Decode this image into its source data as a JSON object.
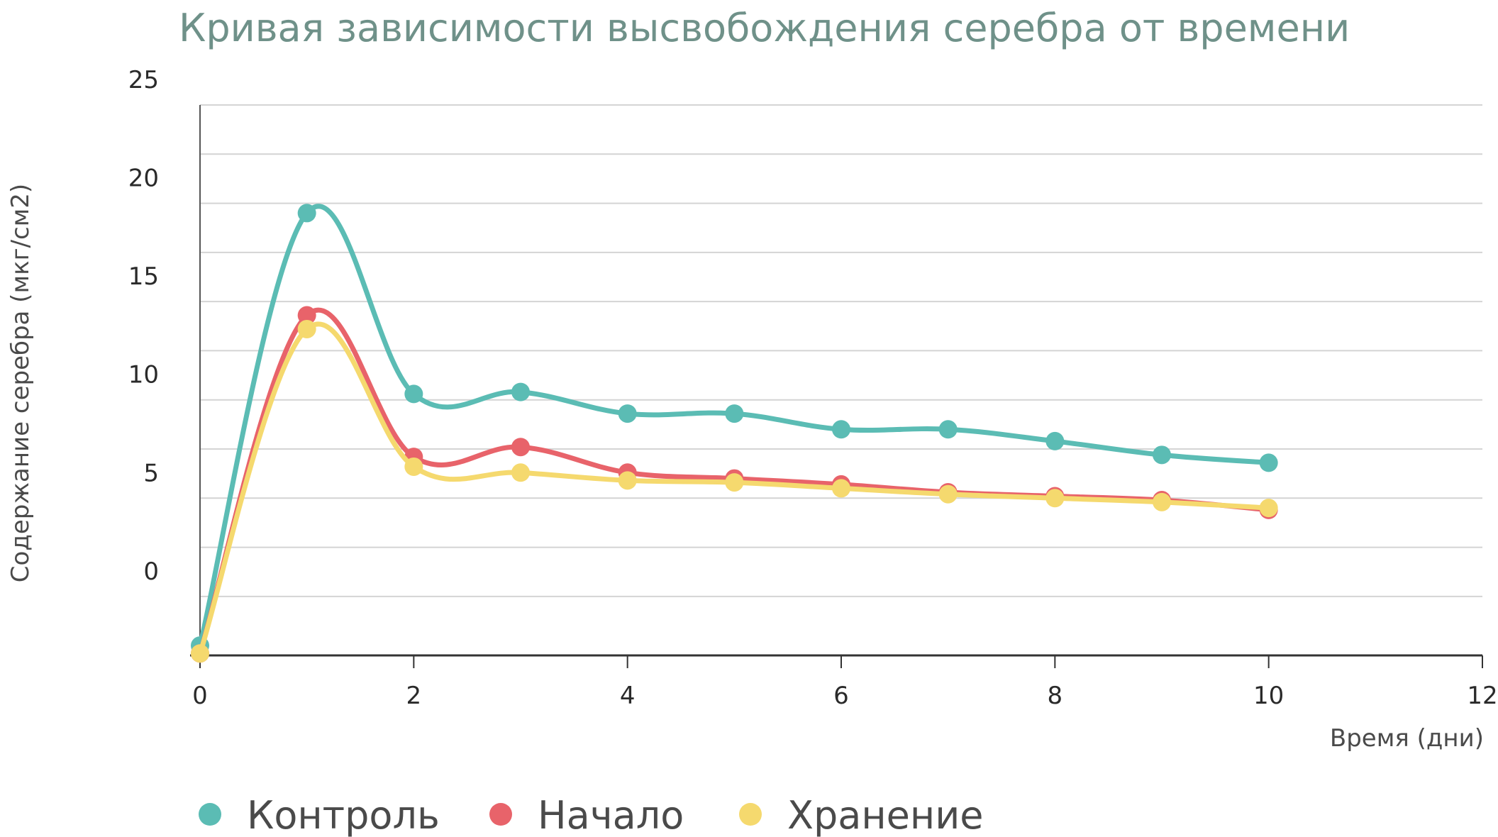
{
  "chart_data": {
    "type": "line",
    "title": "Кривая зависимости высвобождения серебра от времени",
    "xlabel": "Время (дни)",
    "ylabel": "Содержание серебра (мкг/см2)",
    "xlim": [
      0,
      12
    ],
    "ylim": [
      -3,
      25
    ],
    "x_ticks": [
      "0",
      "2",
      "4",
      "6",
      "8",
      "10",
      "12"
    ],
    "y_ticks": [
      "0",
      "5",
      "10",
      "15",
      "20",
      "25"
    ],
    "grid": true,
    "legend_position": "bottom-left",
    "x": [
      0,
      1,
      2,
      3,
      4,
      5,
      6,
      7,
      8,
      9,
      10
    ],
    "series": [
      {
        "name": "Контроль",
        "color": "#5bbcb4",
        "values": [
          -2.5,
          19.5,
          10.3,
          10.4,
          9.3,
          9.3,
          8.5,
          8.5,
          7.9,
          7.2,
          6.8
        ]
      },
      {
        "name": "Начало",
        "color": "#e8636a",
        "values": [
          -2.9,
          14.3,
          7.1,
          7.6,
          6.3,
          6.0,
          5.7,
          5.3,
          5.1,
          4.9,
          4.4
        ]
      },
      {
        "name": "Хранение",
        "color": "#f5d96e",
        "values": [
          -2.9,
          13.6,
          6.6,
          6.3,
          5.9,
          5.8,
          5.5,
          5.2,
          5.0,
          4.8,
          4.5
        ]
      }
    ]
  }
}
